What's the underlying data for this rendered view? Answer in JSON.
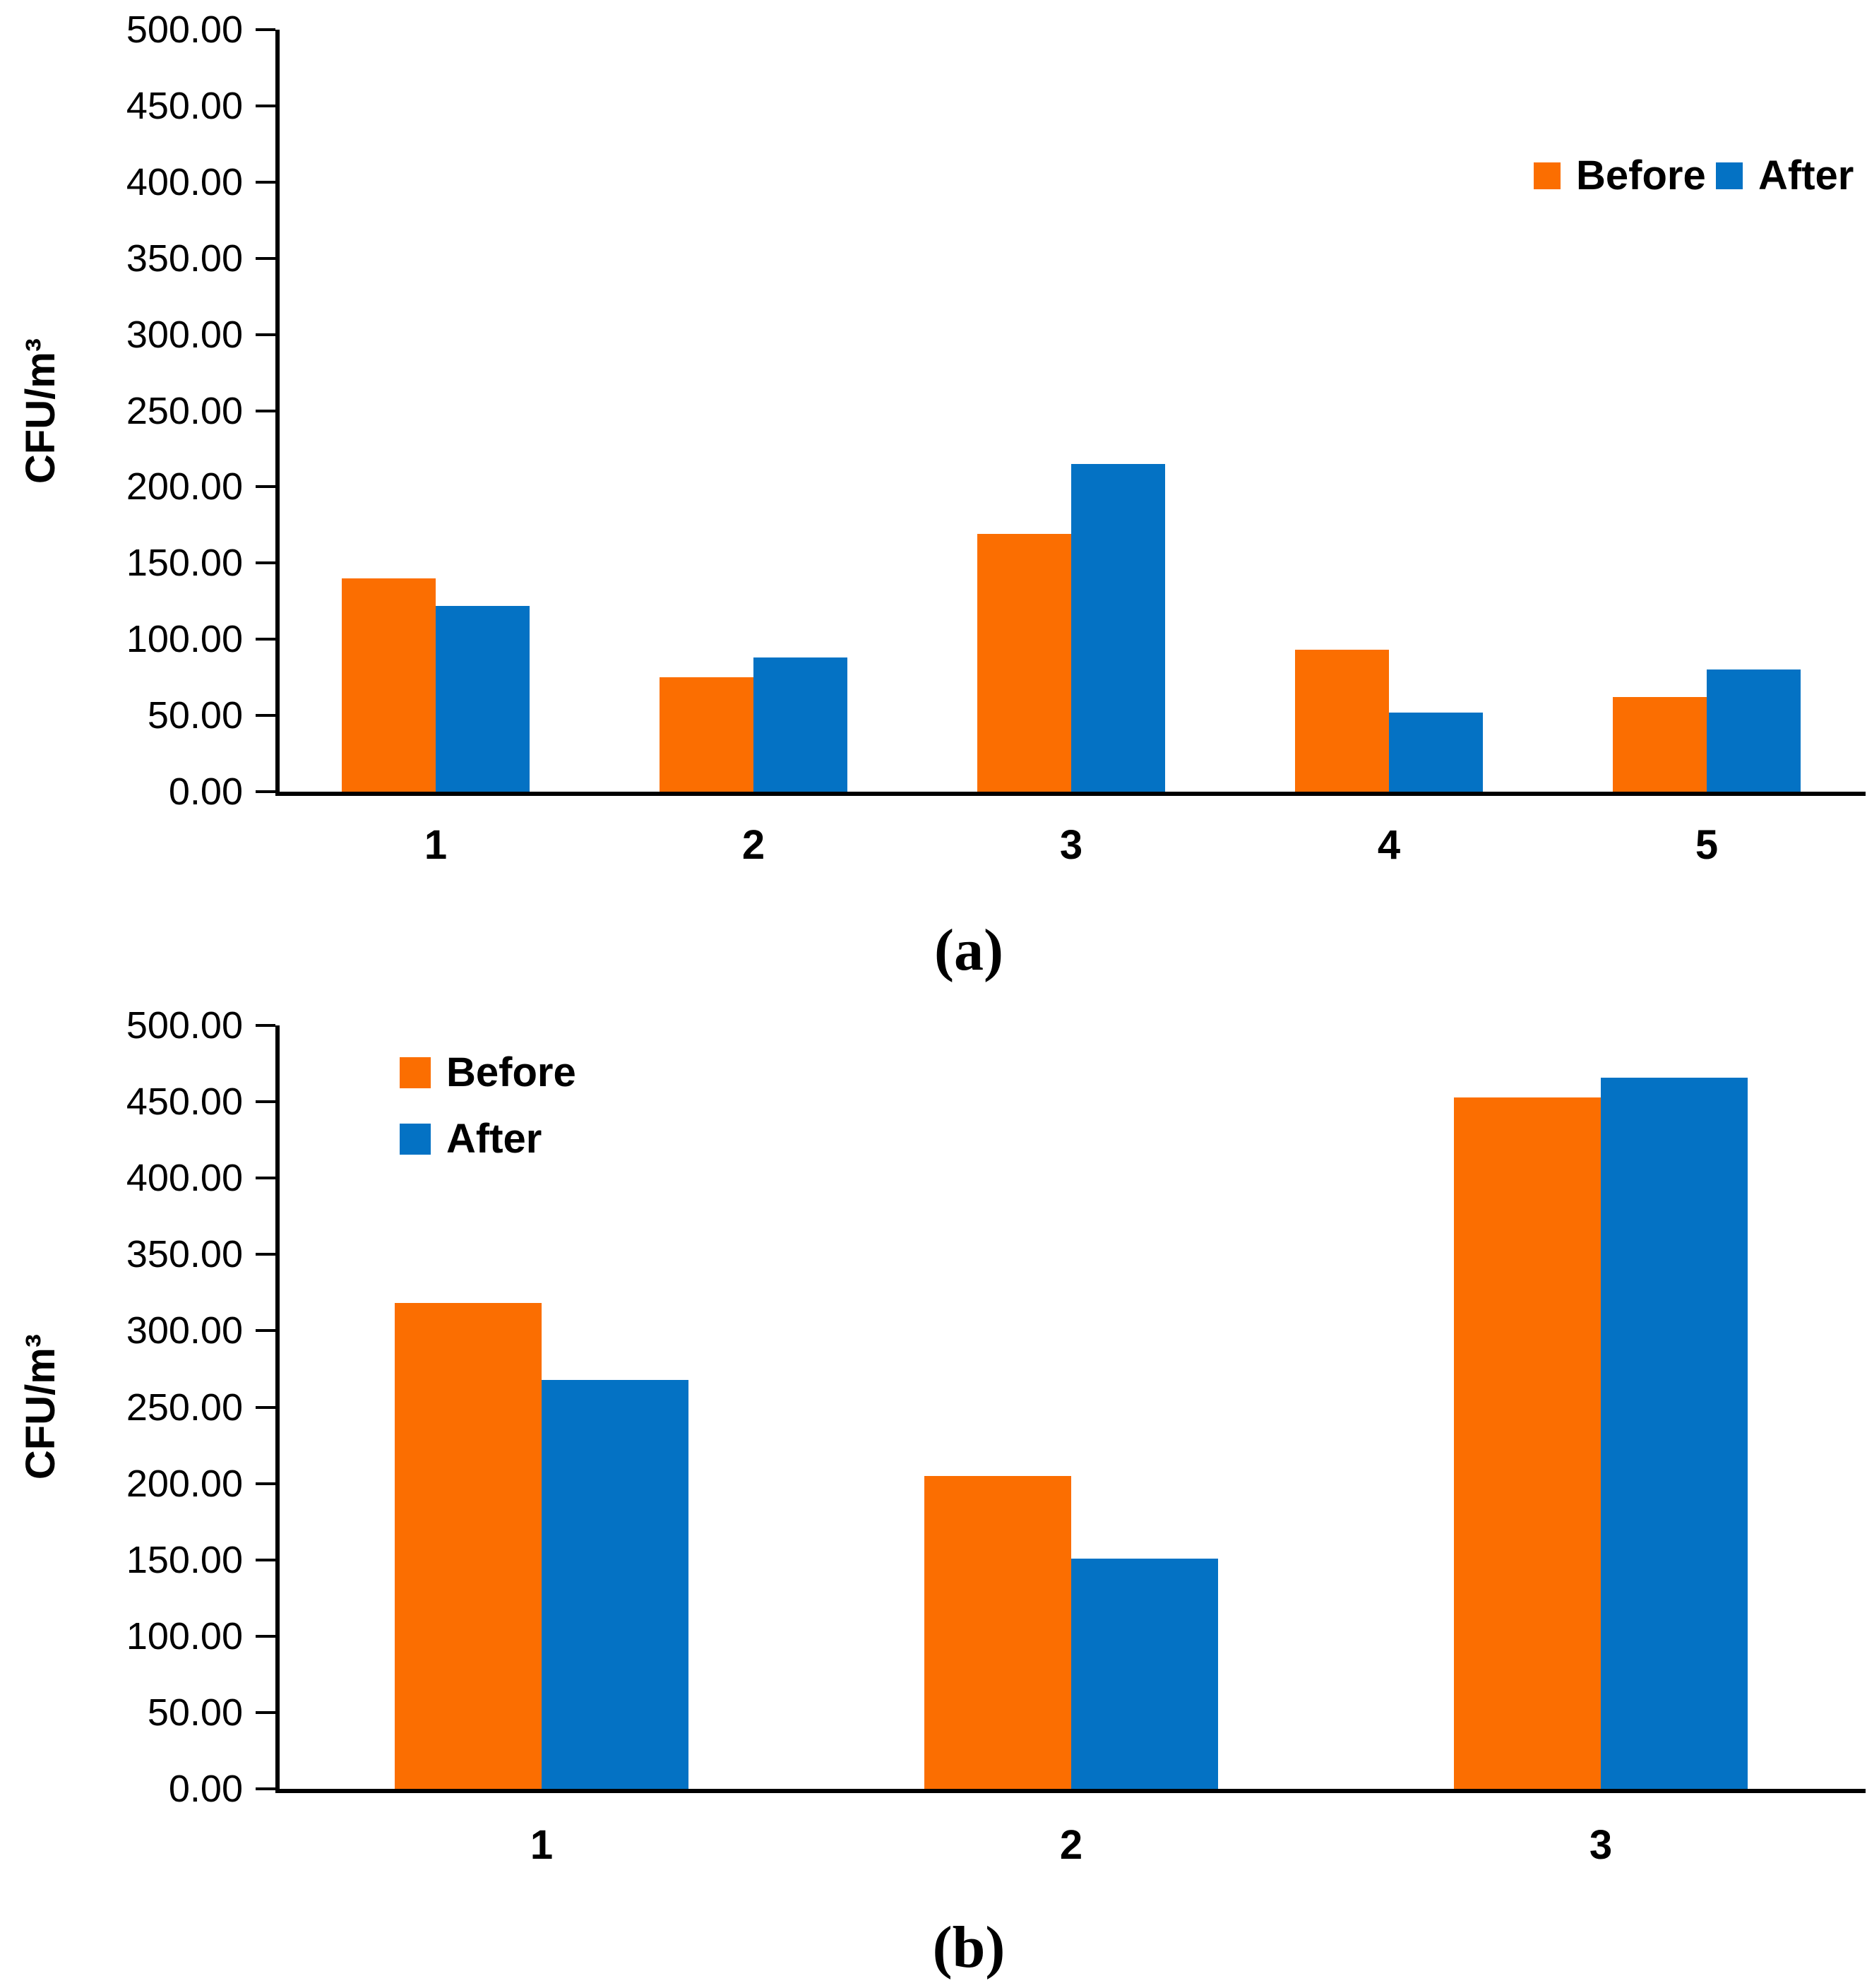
{
  "figure": {
    "background": "#FFFFFF",
    "series_colors": {
      "before": "#FB6E01",
      "after": "#0472C4"
    },
    "charts": [
      {
        "caption": "(a)",
        "y_axis_title": "CFU/m³",
        "legend": {
          "position": "top-right",
          "items": [
            {
              "label": "Before",
              "color": "#FB6E01"
            },
            {
              "label": "After",
              "color": "#0472C4"
            }
          ]
        },
        "chart_data": {
          "type": "bar",
          "categories": [
            "1",
            "2",
            "3",
            "4",
            "5"
          ],
          "series": [
            {
              "name": "Before",
              "color": "#FB6E01",
              "values": [
                140,
                75,
                169,
                93,
                62
              ]
            },
            {
              "name": "After",
              "color": "#0472C4",
              "values": [
                122,
                88,
                215,
                52,
                80
              ]
            }
          ],
          "xlabel": "",
          "ylabel": "CFU/m³",
          "ylim": [
            0,
            500
          ],
          "ytick_step": 50,
          "ytick_labels": [
            "0.00",
            "50.00",
            "100.00",
            "150.00",
            "200.00",
            "250.00",
            "300.00",
            "350.00",
            "400.00",
            "450.00",
            "500.00"
          ],
          "grid": false,
          "legend_position": "top-right"
        }
      },
      {
        "caption": "(b)",
        "y_axis_title": "CFU/m³",
        "legend": {
          "position": "top-left",
          "items": [
            {
              "label": "Before",
              "color": "#FB6E01"
            },
            {
              "label": "After",
              "color": "#0472C4"
            }
          ]
        },
        "chart_data": {
          "type": "bar",
          "categories": [
            "1",
            "2",
            "3"
          ],
          "series": [
            {
              "name": "Before",
              "color": "#FB6E01",
              "values": [
                318,
                205,
                453
              ]
            },
            {
              "name": "After",
              "color": "#0472C4",
              "values": [
                268,
                151,
                466
              ]
            }
          ],
          "xlabel": "",
          "ylabel": "CFU/m³",
          "ylim": [
            0,
            500
          ],
          "ytick_step": 50,
          "ytick_labels": [
            "0.00",
            "50.00",
            "100.00",
            "150.00",
            "200.00",
            "250.00",
            "300.00",
            "350.00",
            "400.00",
            "450.00",
            "500.00"
          ],
          "grid": false,
          "legend_position": "top-left"
        }
      }
    ]
  }
}
